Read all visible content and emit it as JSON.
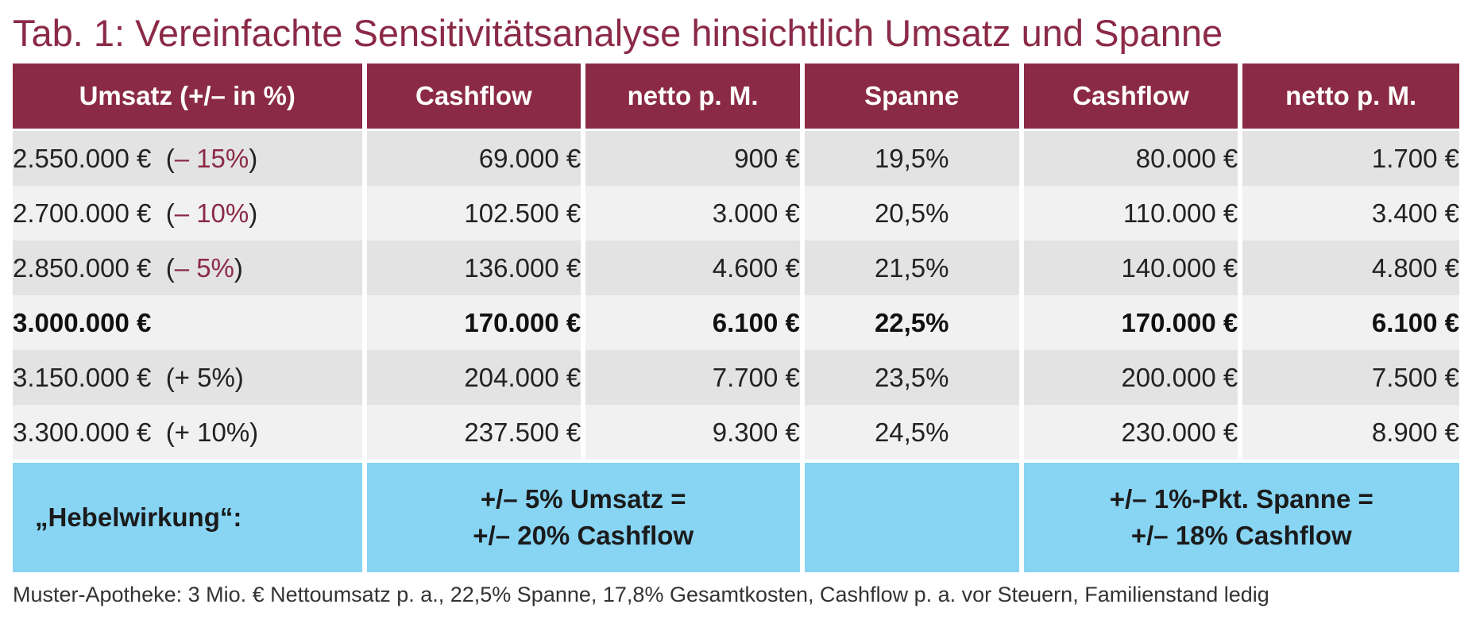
{
  "title": "Tab. 1: Vereinfachte Sensitivitätsanalyse hinsichtlich Umsatz und Spanne",
  "headers": [
    "Umsatz (+/– in %)",
    "Cashflow",
    "netto p. M.",
    "Spanne",
    "Cashflow",
    "netto p. M."
  ],
  "rows": [
    {
      "umsatz": "2.550.000 €",
      "change": "(– 15%)",
      "cashflow1": "69.000 €",
      "netto1": "900 €",
      "spanne": "19,5%",
      "cashflow2": "80.000 €",
      "netto2": "1.700 €"
    },
    {
      "umsatz": "2.700.000 €",
      "change": "(– 10%)",
      "cashflow1": "102.500 €",
      "netto1": "3.000 €",
      "spanne": "20,5%",
      "cashflow2": "110.000 €",
      "netto2": "3.400 €"
    },
    {
      "umsatz": "2.850.000 €",
      "change": "(– 5%)",
      "cashflow1": "136.000 €",
      "netto1": "4.600 €",
      "spanne": "21,5%",
      "cashflow2": "140.000 €",
      "netto2": "4.800 €"
    },
    {
      "umsatz": "3.000.000 €",
      "change": "",
      "cashflow1": "170.000 €",
      "netto1": "6.100 €",
      "spanne": "22,5%",
      "cashflow2": "170.000 €",
      "netto2": "6.100 €"
    },
    {
      "umsatz": "3.150.000 €",
      "change": "(+ 5%)",
      "cashflow1": "204.000 €",
      "netto1": "7.700 €",
      "spanne": "23,5%",
      "cashflow2": "200.000 €",
      "netto2": "7.500 €"
    },
    {
      "umsatz": "3.300.000 €",
      "change": "(+ 10%)",
      "cashflow1": "237.500 €",
      "netto1": "9.300 €",
      "spanne": "24,5%",
      "cashflow2": "230.000 €",
      "netto2": "8.900 €"
    }
  ],
  "hebel": {
    "label": "„Hebelwirkung“:",
    "umsatz_line1": "+/– 5% Umsatz =",
    "umsatz_line2": "+/– 20% Cashflow",
    "spanne_line1": "+/– 1%-Pkt. Spanne =",
    "spanne_line2": "+/– 18% Cashflow"
  },
  "footnote": "Muster-Apotheke: 3 Mio. € Nettoumsatz p. a., 22,5% Spanne, 17,8% Gesamtkosten, Cashflow p. a. vor Steuern, Familienstand ledig",
  "colors": {
    "header_bg": "#8b2a47",
    "row_dark": "#e3e3e3",
    "row_light": "#f1f1f1",
    "hebel_bg": "#87d4f3"
  }
}
